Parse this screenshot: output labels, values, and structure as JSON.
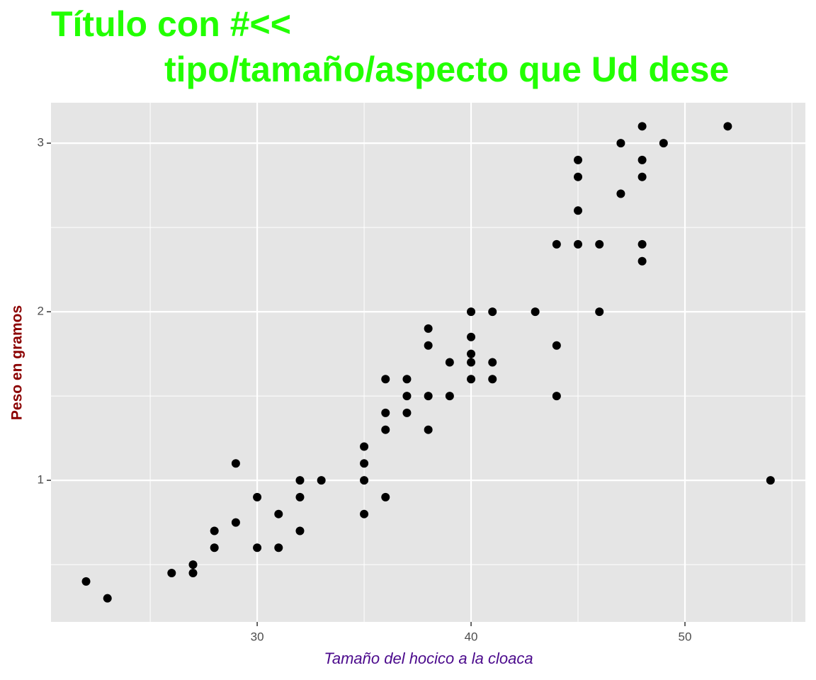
{
  "chart_data": {
    "type": "scatter",
    "title": [
      "Título con  #<<",
      "tipo/tamaño/aspecto que Ud dese"
    ],
    "title_color": "#22ff00",
    "x_label": "Tamaño del hocico a la cloaca",
    "x_label_color": "#4b0a8c",
    "y_label": "Peso en gramos",
    "y_label_color": "#8b0000",
    "x": [
      22,
      23,
      26,
      27,
      27,
      28,
      28,
      29,
      29,
      30,
      30,
      31,
      31,
      32,
      32,
      32,
      33,
      35,
      35,
      35,
      35,
      36,
      36,
      36,
      36,
      37,
      37,
      37,
      38,
      38,
      38,
      38,
      39,
      39,
      40,
      40,
      40,
      40,
      40,
      41,
      41,
      41,
      43,
      44,
      44,
      44,
      45,
      45,
      45,
      45,
      46,
      46,
      47,
      47,
      48,
      48,
      48,
      48,
      48,
      49,
      52,
      54
    ],
    "values": [
      0.4,
      0.3,
      0.45,
      0.45,
      0.5,
      0.7,
      0.6,
      1.1,
      0.75,
      0.9,
      0.6,
      0.8,
      0.6,
      1.0,
      0.9,
      0.7,
      1.0,
      1.2,
      1.1,
      1.0,
      0.8,
      1.6,
      1.4,
      1.3,
      0.9,
      1.6,
      1.5,
      1.4,
      1.9,
      1.8,
      1.5,
      1.3,
      1.7,
      1.5,
      2.0,
      1.85,
      1.75,
      1.7,
      1.6,
      2.0,
      1.7,
      1.6,
      2.0,
      2.4,
      1.8,
      1.5,
      2.9,
      2.8,
      2.6,
      2.4,
      2.4,
      2.0,
      3.0,
      2.7,
      3.1,
      2.9,
      2.8,
      2.4,
      2.3,
      3.0,
      3.1,
      1.0
    ],
    "color": "#000000",
    "xlim": [
      20.36,
      55.63
    ],
    "xticks": [
      30,
      40,
      50
    ],
    "xminor": [
      25,
      35,
      45,
      55
    ],
    "ylim": [
      0.16,
      3.24
    ],
    "yticks": [
      1,
      2,
      3
    ],
    "yminor": [
      0.5,
      1.5,
      2.5
    ],
    "grid": true
  }
}
